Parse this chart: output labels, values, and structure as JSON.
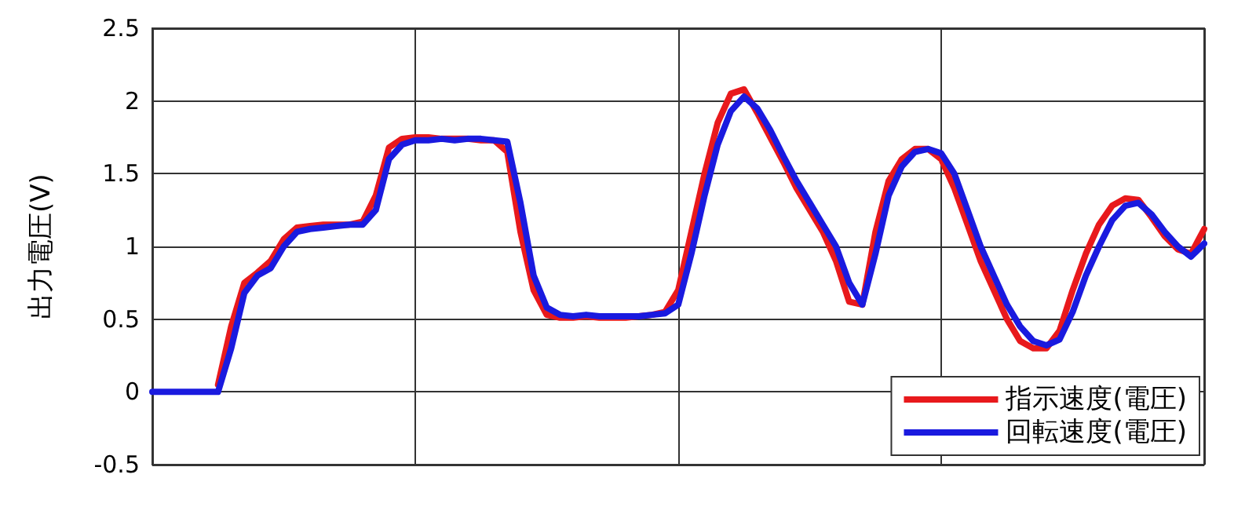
{
  "chart_data": {
    "type": "line",
    "ylabel": "出力電圧(V)",
    "categories": [
      null,
      null,
      null,
      null,
      null,
      null,
      null,
      null,
      null,
      null,
      null,
      null,
      null,
      null,
      null,
      null,
      null,
      null,
      null,
      null,
      null,
      null,
      null,
      null,
      null,
      null,
      null,
      null,
      null,
      null,
      null,
      null,
      null,
      null,
      null,
      null,
      null,
      null,
      null,
      null,
      null,
      null,
      null,
      null,
      null,
      null,
      null,
      null,
      null,
      null,
      null,
      null,
      null,
      null,
      null,
      null,
      null,
      null,
      null,
      null,
      null,
      null,
      null,
      null,
      null,
      null,
      null,
      null,
      null,
      null,
      null,
      null,
      null,
      null,
      null,
      null,
      null,
      null,
      null,
      null,
      null
    ],
    "series": [
      {
        "name": "指示速度(電圧)",
        "color": "#e8191c",
        "values": [
          null,
          null,
          null,
          null,
          null,
          0.05,
          0.45,
          0.75,
          0.82,
          0.9,
          1.05,
          1.13,
          1.14,
          1.15,
          1.15,
          1.15,
          1.17,
          1.35,
          1.68,
          1.74,
          1.75,
          1.75,
          1.74,
          1.74,
          1.74,
          1.73,
          1.73,
          1.65,
          1.1,
          0.7,
          0.53,
          0.51,
          0.51,
          0.52,
          0.51,
          0.51,
          0.51,
          0.52,
          0.53,
          0.55,
          0.7,
          1.1,
          1.5,
          1.85,
          2.05,
          2.08,
          1.92,
          1.75,
          1.58,
          1.4,
          1.25,
          1.1,
          0.9,
          0.62,
          0.6,
          1.1,
          1.45,
          1.6,
          1.67,
          1.67,
          1.6,
          1.4,
          1.15,
          0.9,
          0.7,
          0.5,
          0.35,
          0.3,
          0.3,
          0.42,
          0.7,
          0.95,
          1.15,
          1.28,
          1.33,
          1.32,
          1.2,
          1.07,
          0.98,
          0.95,
          1.12
        ]
      },
      {
        "name": "回転速度(電圧)",
        "color": "#1a1adf",
        "values": [
          0,
          0,
          0,
          0,
          0,
          0,
          0.3,
          0.68,
          0.8,
          0.85,
          1.0,
          1.1,
          1.12,
          1.13,
          1.14,
          1.15,
          1.15,
          1.25,
          1.6,
          1.7,
          1.73,
          1.73,
          1.74,
          1.73,
          1.74,
          1.74,
          1.73,
          1.72,
          1.3,
          0.8,
          0.58,
          0.53,
          0.52,
          0.53,
          0.52,
          0.52,
          0.52,
          0.52,
          0.53,
          0.54,
          0.6,
          0.95,
          1.35,
          1.7,
          1.93,
          2.03,
          1.95,
          1.8,
          1.62,
          1.45,
          1.3,
          1.15,
          1.0,
          0.75,
          0.6,
          0.95,
          1.35,
          1.55,
          1.65,
          1.67,
          1.64,
          1.5,
          1.25,
          1.0,
          0.8,
          0.6,
          0.45,
          0.35,
          0.32,
          0.36,
          0.55,
          0.8,
          1.0,
          1.18,
          1.28,
          1.3,
          1.22,
          1.1,
          1.0,
          0.93,
          1.02
        ]
      }
    ],
    "ylim": [
      -0.5,
      2.5
    ],
    "yticks": [
      -0.5,
      0,
      0.5,
      1,
      1.5,
      2,
      2.5
    ],
    "grid": true,
    "legend": "bottom right",
    "tick_labels": "y",
    "line_style": "solid"
  }
}
